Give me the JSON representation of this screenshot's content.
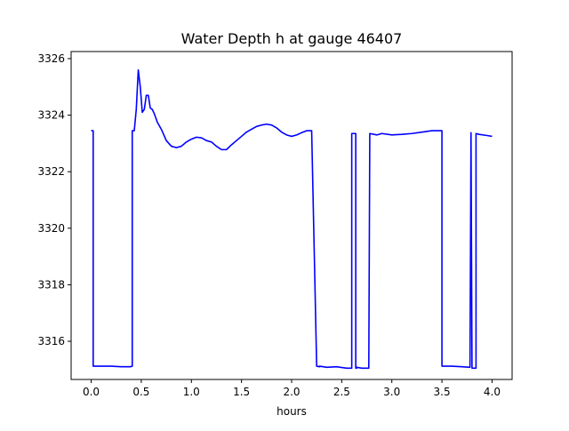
{
  "chart_data": {
    "type": "line",
    "title": "Water Depth h at gauge 46407",
    "xlabel": "hours",
    "ylabel": "",
    "xlim": [
      -0.2,
      4.2
    ],
    "ylim": [
      3314.65,
      3326.25
    ],
    "x_ticks": [
      0.0,
      0.5,
      1.0,
      1.5,
      2.0,
      2.5,
      3.0,
      3.5,
      4.0
    ],
    "x_tick_labels": [
      "0.0",
      "0.5",
      "1.0",
      "1.5",
      "2.0",
      "2.5",
      "3.0",
      "3.5",
      "4.0"
    ],
    "y_ticks": [
      3316,
      3318,
      3320,
      3322,
      3324,
      3326
    ],
    "y_tick_labels": [
      "3316",
      "3318",
      "3320",
      "3322",
      "3324",
      "3326"
    ],
    "grid": false,
    "series": [
      {
        "color": "#0000ff",
        "x": [
          0.0,
          0.02,
          0.02,
          0.2,
          0.3,
          0.39,
          0.41,
          0.41,
          0.43,
          0.45,
          0.47,
          0.49,
          0.51,
          0.53,
          0.55,
          0.57,
          0.59,
          0.61,
          0.63,
          0.66,
          0.7,
          0.75,
          0.8,
          0.85,
          0.9,
          0.95,
          1.0,
          1.05,
          1.1,
          1.15,
          1.2,
          1.25,
          1.3,
          1.35,
          1.4,
          1.45,
          1.5,
          1.55,
          1.6,
          1.65,
          1.7,
          1.75,
          1.8,
          1.85,
          1.9,
          1.95,
          2.0,
          2.05,
          2.1,
          2.15,
          2.2,
          2.25,
          2.28,
          2.28,
          2.35,
          2.45,
          2.55,
          2.6,
          2.6,
          2.64,
          2.64,
          2.65,
          2.65,
          2.7,
          2.77,
          2.78,
          2.78,
          2.85,
          2.9,
          3.0,
          3.1,
          3.2,
          3.3,
          3.4,
          3.5,
          3.5,
          3.6,
          3.7,
          3.78,
          3.78,
          3.79,
          3.79,
          3.8,
          3.8,
          3.84,
          3.84,
          3.87,
          3.95,
          4.0
        ],
        "y": [
          3323.45,
          3323.45,
          3315.12,
          3315.12,
          3315.1,
          3315.1,
          3315.12,
          3323.45,
          3323.45,
          3324.2,
          3325.6,
          3325.0,
          3324.1,
          3324.2,
          3324.7,
          3324.7,
          3324.25,
          3324.2,
          3324.05,
          3323.75,
          3323.5,
          3323.1,
          3322.9,
          3322.85,
          3322.9,
          3323.05,
          3323.15,
          3323.22,
          3323.2,
          3323.1,
          3323.05,
          3322.9,
          3322.78,
          3322.78,
          3322.95,
          3323.1,
          3323.25,
          3323.4,
          3323.5,
          3323.6,
          3323.65,
          3323.68,
          3323.65,
          3323.55,
          3323.4,
          3323.3,
          3323.25,
          3323.3,
          3323.38,
          3323.45,
          3323.45,
          3315.12,
          3315.1,
          3315.12,
          3315.08,
          3315.1,
          3315.05,
          3315.05,
          3323.35,
          3323.35,
          3315.05,
          3315.05,
          3315.08,
          3315.05,
          3315.05,
          3323.35,
          3323.35,
          3323.3,
          3323.35,
          3323.3,
          3323.32,
          3323.35,
          3323.4,
          3323.45,
          3323.45,
          3315.12,
          3315.12,
          3315.1,
          3315.08,
          3315.08,
          3323.38,
          3323.38,
          3315.05,
          3315.05,
          3315.05,
          3323.35,
          3323.32,
          3323.28,
          3323.25
        ]
      }
    ]
  }
}
